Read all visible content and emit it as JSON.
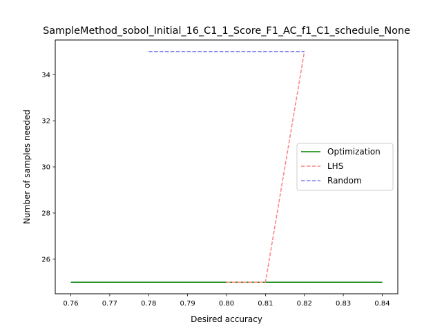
{
  "chart_data": {
    "type": "line",
    "title": "SampleMethod_sobol_Initial_16_C1_1_Score_F1_AC_f1_C1_schedule_None",
    "xlabel": "Desired accuracy",
    "ylabel": "Number of samples needed",
    "xlim": [
      0.756,
      0.844
    ],
    "ylim": [
      24.5,
      35.5
    ],
    "x_ticks": [
      0.76,
      0.77,
      0.78,
      0.79,
      0.8,
      0.81,
      0.82,
      0.83,
      0.84
    ],
    "x_tick_labels": [
      "0.76",
      "0.77",
      "0.78",
      "0.79",
      "0.80",
      "0.81",
      "0.82",
      "0.83",
      "0.84"
    ],
    "y_ticks": [
      26,
      28,
      30,
      32,
      34
    ],
    "y_tick_labels": [
      "26",
      "28",
      "30",
      "32",
      "34"
    ],
    "grid": false,
    "legend_position": "center-right",
    "series": [
      {
        "name": "Optimization",
        "color": "#008000",
        "dash": "solid",
        "x": [
          0.76,
          0.77,
          0.78,
          0.79,
          0.8,
          0.81,
          0.82,
          0.83,
          0.84
        ],
        "y": [
          25,
          25,
          25,
          25,
          25,
          25,
          25,
          25,
          25
        ]
      },
      {
        "name": "LHS",
        "color": "#ff8080",
        "dash": "dashed",
        "x": [
          0.8,
          0.81,
          0.82
        ],
        "y": [
          25,
          25,
          35
        ]
      },
      {
        "name": "Random",
        "color": "#8080ee",
        "dash": "dashed",
        "x": [
          0.78,
          0.79,
          0.8,
          0.81,
          0.82
        ],
        "y": [
          35,
          35,
          35,
          35,
          35
        ]
      }
    ]
  }
}
